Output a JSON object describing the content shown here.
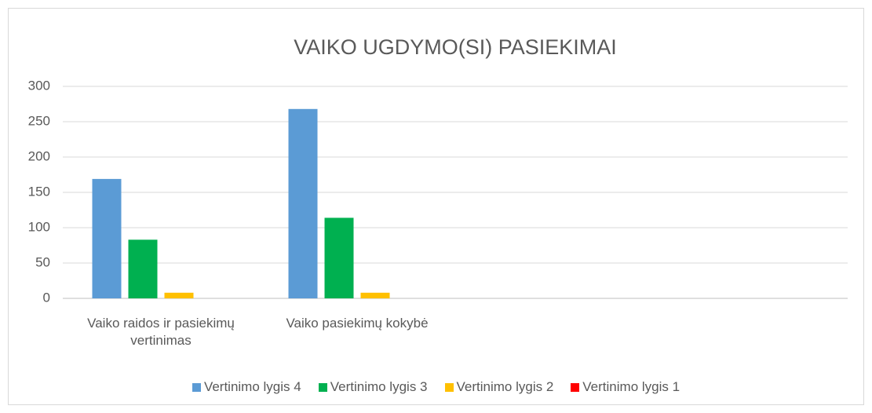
{
  "chart_data": {
    "type": "bar",
    "title": "VAIKO UGDYMO(SI) PASIEKIMAI",
    "categories": [
      "Vaiko raidos ir pasiekimų vertinimas",
      "Vaiko pasiekimų kokybė",
      null,
      null
    ],
    "series": [
      {
        "name": "Vertinimo lygis 4",
        "color": "#5b9bd5",
        "values": [
          169,
          268,
          null,
          null
        ]
      },
      {
        "name": "Vertinimo lygis 3",
        "color": "#00b050",
        "values": [
          83,
          114,
          null,
          null
        ]
      },
      {
        "name": "Vertinimo lygis 2",
        "color": "#ffc000",
        "values": [
          8,
          8,
          null,
          null
        ]
      },
      {
        "name": "Vertinimo lygis 1",
        "color": "#ff0000",
        "values": [
          0,
          0,
          null,
          null
        ]
      }
    ],
    "ylim": [
      0,
      300
    ],
    "yticks": [
      0,
      50,
      100,
      150,
      200,
      250,
      300
    ],
    "grid": true,
    "legend": "bottom"
  }
}
